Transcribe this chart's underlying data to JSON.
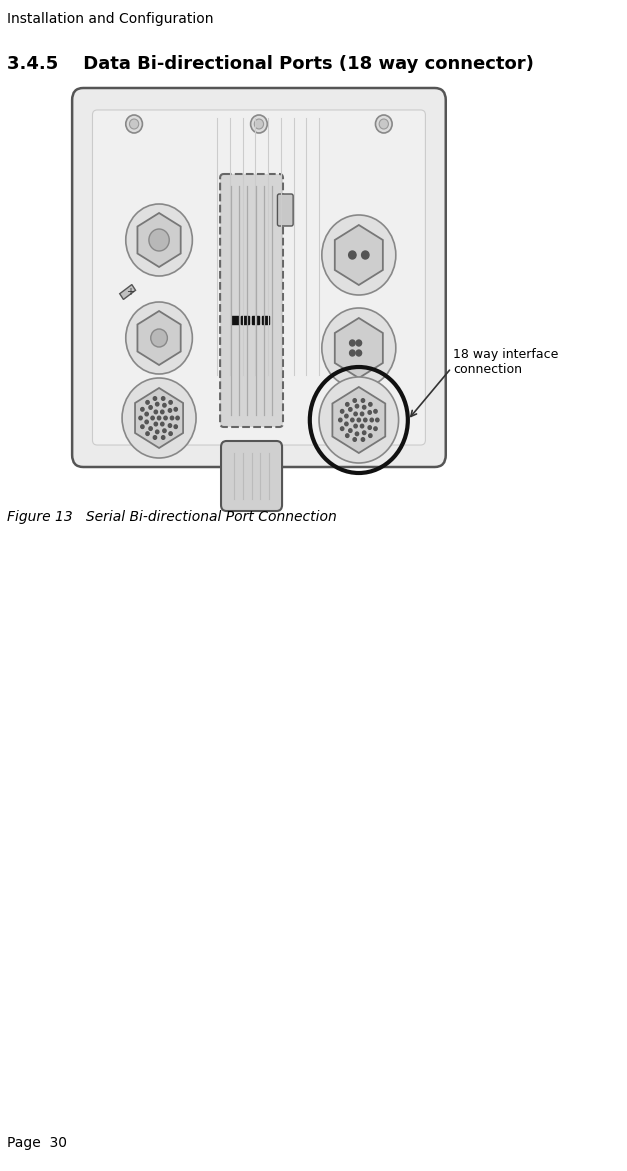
{
  "header_text": "Installation and Configuration",
  "section_title": "3.4.5    Data Bi-directional Ports (18 way connector)",
  "figure_caption": "Figure 13   Serial Bi-directional Port Connection",
  "annotation_text": "18 way interface\nconnection",
  "page_number": "Page  30",
  "bg_color": "#ffffff",
  "line_color": "#000000",
  "device_fill": "#f0f0f0",
  "device_stroke": "#555555",
  "highlight_circle_color": "#111111",
  "annotation_line_color": "#333333"
}
